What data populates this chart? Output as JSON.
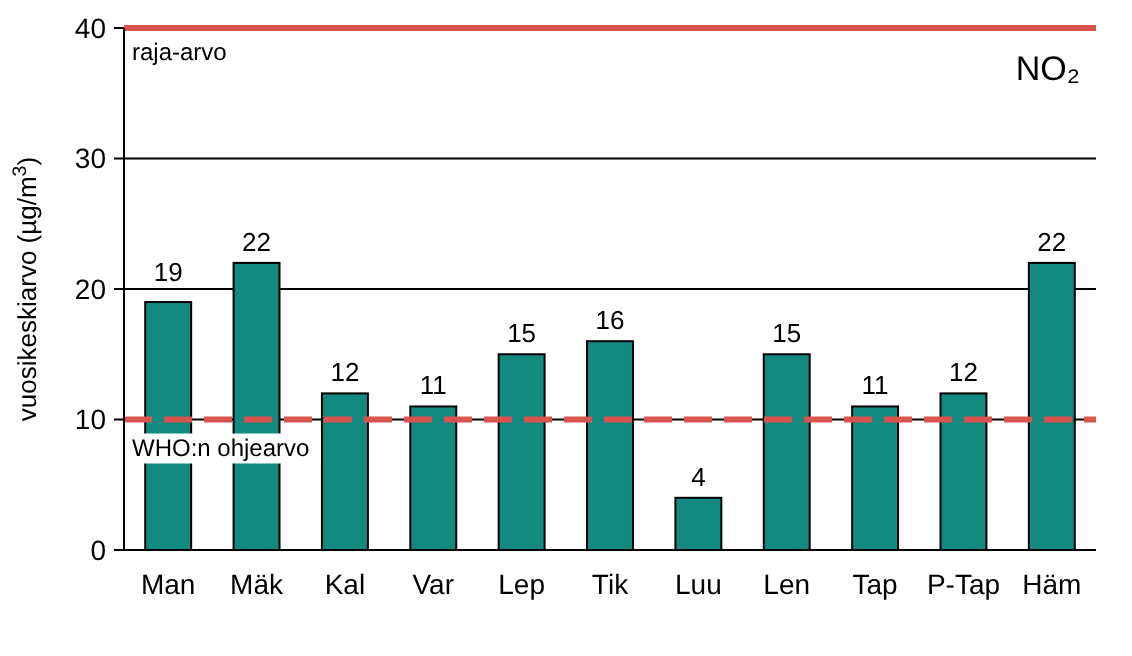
{
  "chart_data": {
    "type": "bar",
    "title": "NO₂",
    "ylabel": "vuosikeskiarvo  (µg/m$^{3}$)",
    "categories": [
      "Man",
      "Mäk",
      "Kal",
      "Var",
      "Lep",
      "Tik",
      "Luu",
      "Len",
      "Tap",
      "P-Tap",
      "Häm"
    ],
    "values": [
      19,
      22,
      12,
      11,
      15,
      16,
      4,
      15,
      11,
      12,
      22
    ],
    "color": "#138a80",
    "ylim": [
      0,
      40
    ],
    "yticks": [
      0,
      10,
      20,
      30,
      40
    ],
    "grid": "y",
    "data_labels": true,
    "ref_lines": [
      {
        "axis": "y",
        "value": 40,
        "label": "raja-arvo",
        "color": "#d9534f",
        "line_style": "solid"
      },
      {
        "axis": "y",
        "value": 10,
        "label": "WHO:n ohjearvo",
        "color": "#d9534f",
        "line_style": "dashed"
      }
    ]
  }
}
